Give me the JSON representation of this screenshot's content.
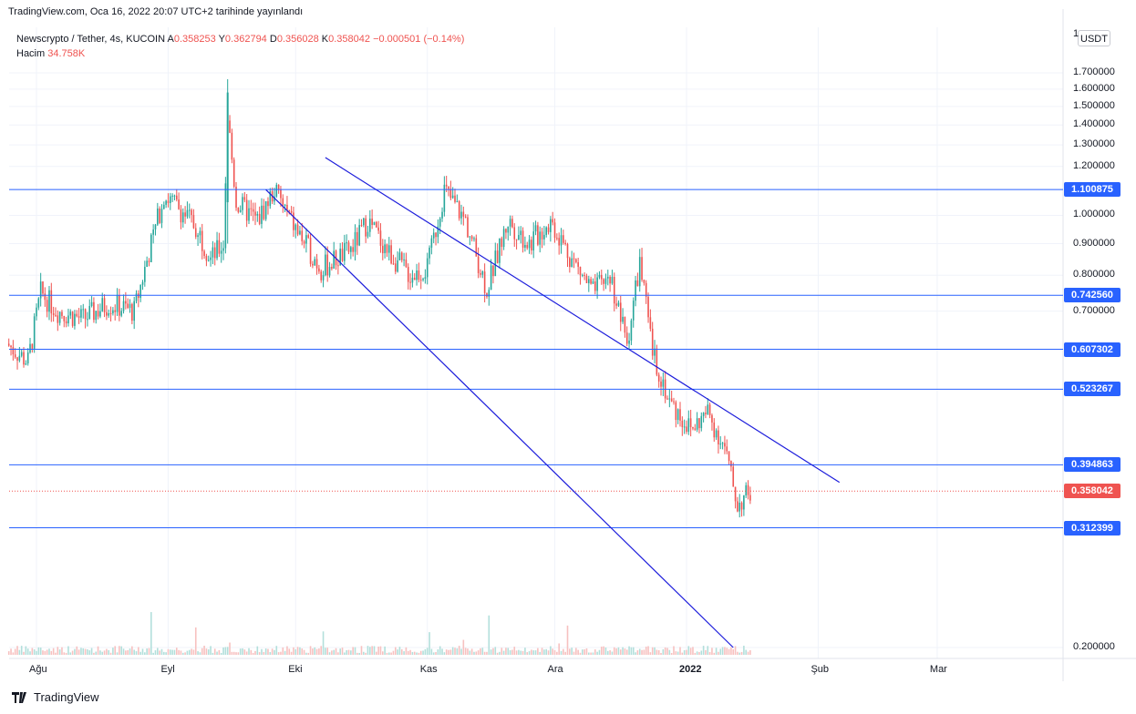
{
  "published": "TradingView.com, Oca 16, 2022 20:07 UTC+2 tarihinde yayınlandı",
  "symbol": {
    "title": "Newscrypto / Tether, 4s, KUCOIN",
    "open_label": "A",
    "open": "0.358253",
    "high_label": "Y",
    "high": "0.362794",
    "low_label": "D",
    "low": "0.356028",
    "close_label": "K",
    "close": "0.358042",
    "change": "−0.000501 (−0.14%)",
    "volume_label": "Hacim",
    "volume": "34.758K"
  },
  "currency": "USDT",
  "colors": {
    "up": "#26a69a",
    "down": "#ef5350",
    "levels": "#2962ff",
    "channel": "#1c1cdb",
    "last": "#ef5350"
  },
  "y_axis_ticks": [
    "1.700000",
    "1.600000",
    "1.500000",
    "1.400000",
    "1.300000",
    "1.200000",
    "1.000000",
    "0.900000",
    "0.800000",
    "0.700000",
    "0.200000"
  ],
  "x_axis_ticks": [
    "Ağu",
    "Eyl",
    "Eki",
    "Kas",
    "Ara",
    "2022",
    "Şub",
    "Mar"
  ],
  "level_tags": [
    "1.100875",
    "0.742560",
    "0.607302",
    "0.523267",
    "0.394863",
    "0.312399"
  ],
  "last_price": "0.358042",
  "footer": {
    "brand": "TradingView",
    "logo": "tradingview-logo-icon"
  },
  "chart_data": {
    "type": "candlestick",
    "title": "Newscrypto / Tether, 4s, KUCOIN",
    "y_axis_scale": "log",
    "horizontal_levels": [
      1.100875,
      0.74256,
      0.607302,
      0.523267,
      0.394863,
      0.312399
    ],
    "last_price": 0.358042,
    "channel_lines": [
      {
        "from": [
          "2021-09-24",
          1.1
        ],
        "to": [
          "2022-01-12",
          0.2
        ]
      },
      {
        "from": [
          "2021-10-08",
          1.24
        ],
        "to": [
          "2022-02-06",
          0.37
        ]
      }
    ],
    "price_path": [
      {
        "date": "2021-07-25",
        "close": 0.62
      },
      {
        "date": "2021-07-30",
        "close": 0.58
      },
      {
        "date": "2021-08-02",
        "close": 0.75
      },
      {
        "date": "2021-08-06",
        "close": 0.7
      },
      {
        "date": "2021-08-12",
        "close": 0.68
      },
      {
        "date": "2021-08-18",
        "close": 0.72
      },
      {
        "date": "2021-08-24",
        "close": 0.7
      },
      {
        "date": "2021-08-28",
        "close": 0.9
      },
      {
        "date": "2021-08-31",
        "close": 1.08
      },
      {
        "date": "2021-09-04",
        "close": 1.02
      },
      {
        "date": "2021-09-08",
        "close": 0.95
      },
      {
        "date": "2021-09-11",
        "close": 0.85
      },
      {
        "date": "2021-09-14",
        "close": 0.9
      },
      {
        "date": "2021-09-15",
        "close": 1.45
      },
      {
        "date": "2021-09-17",
        "close": 1.05
      },
      {
        "date": "2021-09-22",
        "close": 0.98
      },
      {
        "date": "2021-09-26",
        "close": 1.1
      },
      {
        "date": "2021-10-01",
        "close": 0.95
      },
      {
        "date": "2021-10-07",
        "close": 0.82
      },
      {
        "date": "2021-10-14",
        "close": 0.88
      },
      {
        "date": "2021-10-18",
        "close": 0.98
      },
      {
        "date": "2021-10-23",
        "close": 0.87
      },
      {
        "date": "2021-10-28",
        "close": 0.8
      },
      {
        "date": "2021-11-01",
        "close": 0.82
      },
      {
        "date": "2021-11-05",
        "close": 1.1
      },
      {
        "date": "2021-11-10",
        "close": 0.98
      },
      {
        "date": "2021-11-15",
        "close": 0.76
      },
      {
        "date": "2021-11-20",
        "close": 0.98
      },
      {
        "date": "2021-11-25",
        "close": 0.9
      },
      {
        "date": "2021-11-30",
        "close": 0.98
      },
      {
        "date": "2021-12-05",
        "close": 0.85
      },
      {
        "date": "2021-12-10",
        "close": 0.75
      },
      {
        "date": "2021-12-14",
        "close": 0.8
      },
      {
        "date": "2021-12-18",
        "close": 0.62
      },
      {
        "date": "2021-12-21",
        "close": 0.84
      },
      {
        "date": "2021-12-24",
        "close": 0.6
      },
      {
        "date": "2021-12-28",
        "close": 0.5
      },
      {
        "date": "2022-01-02",
        "close": 0.45
      },
      {
        "date": "2022-01-06",
        "close": 0.48
      },
      {
        "date": "2022-01-10",
        "close": 0.42
      },
      {
        "date": "2022-01-13",
        "close": 0.34
      },
      {
        "date": "2022-01-16",
        "close": 0.358
      }
    ]
  }
}
